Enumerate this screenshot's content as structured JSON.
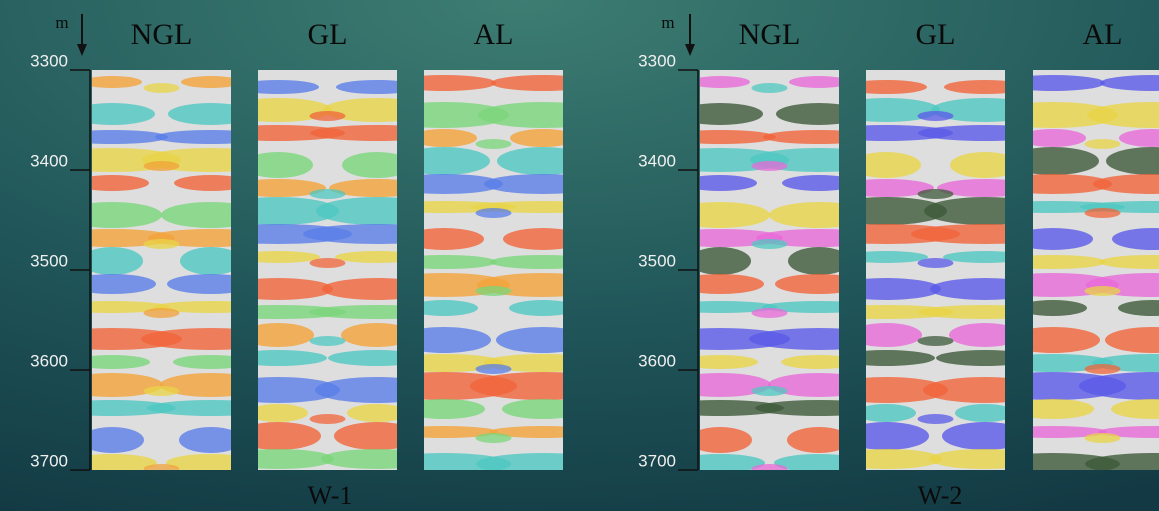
{
  "wells": [
    {
      "name": "W-1",
      "unit": "m",
      "ticks": [
        3300,
        3400,
        3500,
        3600,
        3700
      ],
      "panels": [
        "NGL",
        "GL",
        "AL"
      ]
    },
    {
      "name": "W-2",
      "unit": "m",
      "ticks": [
        3300,
        3400,
        3500,
        3600,
        3700
      ],
      "panels": [
        "NGL",
        "GL",
        "AL"
      ]
    }
  ]
}
